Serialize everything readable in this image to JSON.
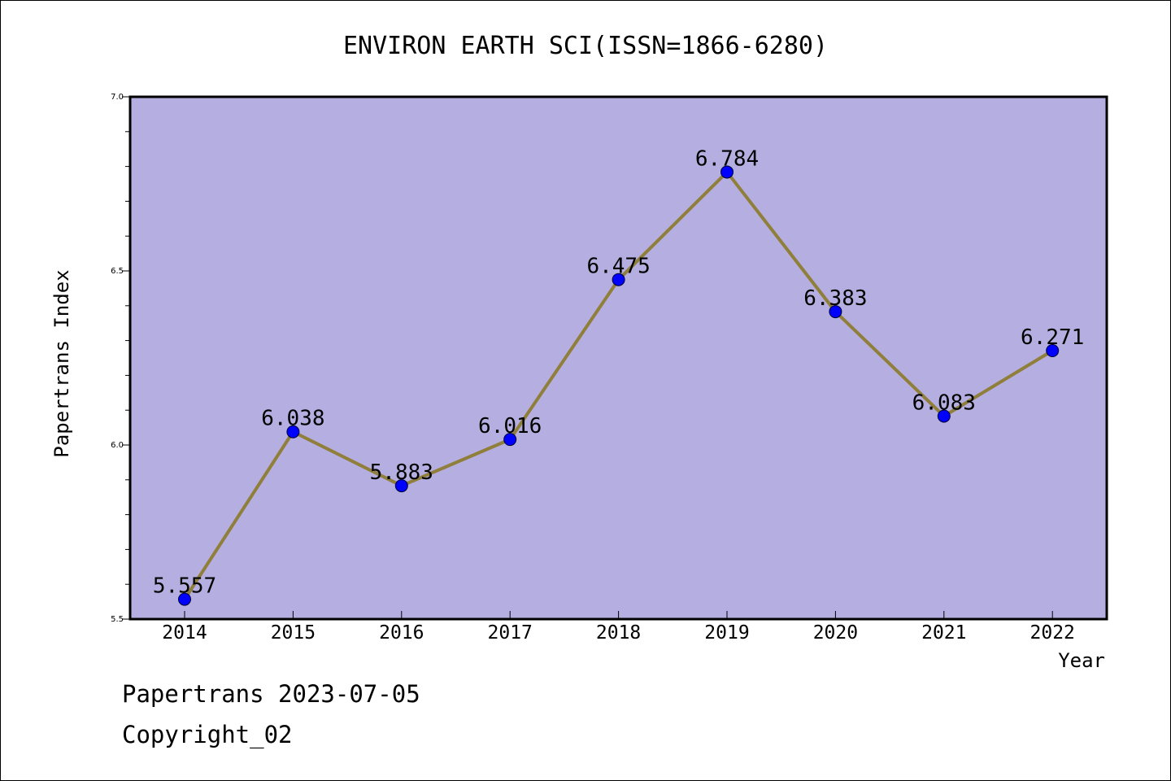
{
  "chart_data": {
    "type": "line",
    "title": "ENVIRON EARTH SCI(ISSN=1866-6280)",
    "xlabel": "Year",
    "ylabel": "Papertrans Index",
    "x": [
      2014,
      2015,
      2016,
      2017,
      2018,
      2019,
      2020,
      2021,
      2022
    ],
    "categories": [
      "2014",
      "2015",
      "2016",
      "2017",
      "2018",
      "2019",
      "2020",
      "2021",
      "2022"
    ],
    "series": [
      {
        "values": [
          5.557,
          6.038,
          5.883,
          6.016,
          6.475,
          6.784,
          6.383,
          6.083,
          6.271
        ],
        "labels": [
          "5.557",
          "6.038",
          "5.883",
          "6.016",
          "6.475",
          "6.784",
          "6.383",
          "6.083",
          "6.271"
        ]
      }
    ],
    "ylim": [
      5.5,
      7.0
    ],
    "yticks": [
      5.5,
      6.0,
      6.5,
      7.0
    ],
    "ytick_labels": [
      "5.5",
      "6.0",
      "6.5",
      "7.0"
    ],
    "grid": false,
    "colors": {
      "plot_background": "#b5aee1",
      "line": "#8f7f3a",
      "marker": "#0000ff"
    }
  },
  "footer": {
    "date_line": "Papertrans 2023-07-05",
    "copyright": "Copyright_02"
  }
}
